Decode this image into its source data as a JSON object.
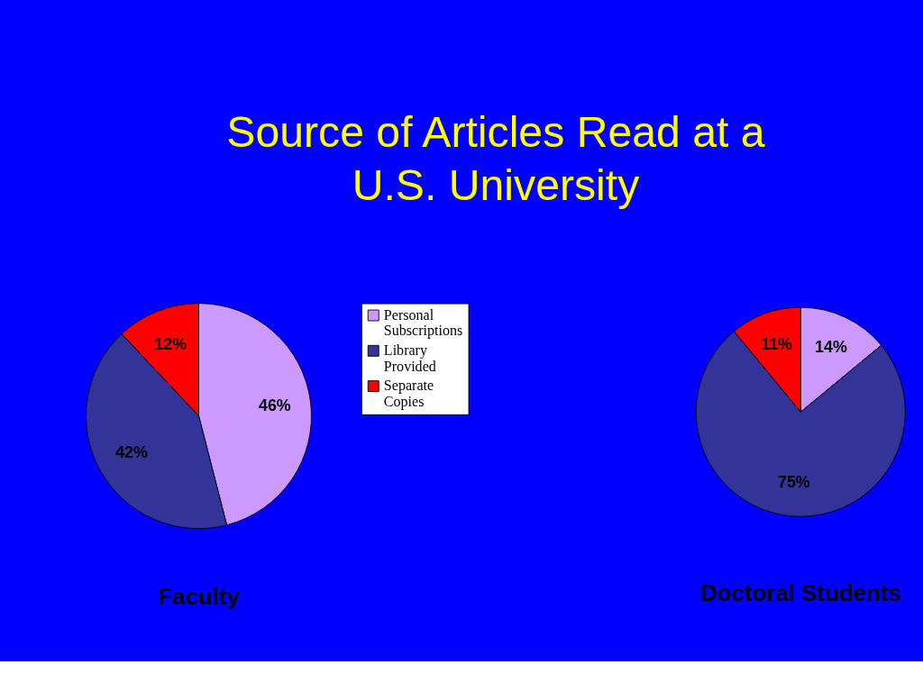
{
  "chart_data": [
    {
      "type": "pie",
      "title": "Source of Articles Read at a U.S. University",
      "xlabel": "Faculty",
      "legend": "right",
      "categories": [
        "Personal Subscriptions",
        "Library Provided",
        "Separate Copies"
      ],
      "values": [
        46,
        42,
        12
      ],
      "value_labels": [
        "46%",
        "42%",
        "12%"
      ],
      "colors": [
        "#cc99ff",
        "#333399",
        "#ff0000"
      ]
    },
    {
      "type": "pie",
      "xlabel": "Doctoral Students",
      "legend": false,
      "values": [
        14,
        75,
        11
      ],
      "value_labels": [
        "14%",
        "75%",
        "11%"
      ],
      "colors": [
        "#cc99ff",
        "#333399",
        "#ff0000"
      ]
    }
  ]
}
